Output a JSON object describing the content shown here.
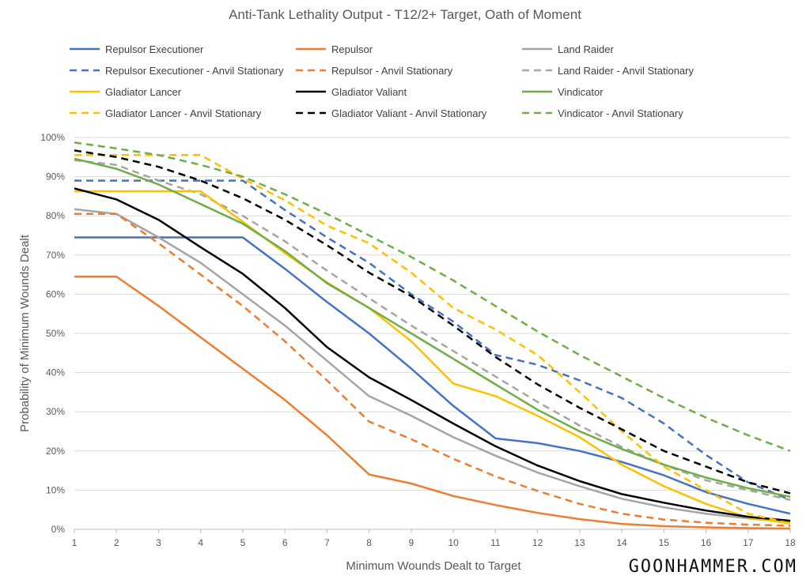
{
  "chart_data": {
    "type": "line",
    "title": "Anti-Tank Lethality Output - T12/2+ Target, Oath of Moment",
    "xlabel": "Minimum Wounds Dealt to Target",
    "ylabel": "Probability of Minimum Wounds Dealt",
    "x": [
      1,
      2,
      3,
      4,
      5,
      6,
      7,
      8,
      9,
      10,
      11,
      12,
      13,
      14,
      15,
      16,
      17,
      18
    ],
    "ylim": [
      0,
      100
    ],
    "yticks": [
      0,
      10,
      20,
      30,
      40,
      50,
      60,
      70,
      80,
      90,
      100
    ],
    "ytick_format": "%",
    "grid": "horizontal",
    "legend_placement": "top",
    "series": [
      {
        "name": "Repulsor Executioner",
        "color": "#4472C4",
        "dash": false,
        "values": [
          74.5,
          74.5,
          74.5,
          74.5,
          74.5,
          66.5,
          58,
          50,
          41,
          31.5,
          23.2,
          22,
          20,
          17.2,
          13.8,
          9.5,
          6.5,
          4
        ]
      },
      {
        "name": "Repulsor",
        "color": "#ED7D31",
        "dash": false,
        "values": [
          64.5,
          64.5,
          57,
          49,
          41,
          33,
          24,
          14,
          11.7,
          8.5,
          6.2,
          4.2,
          2.6,
          1.4,
          0.8,
          0.5,
          0.3,
          0.2
        ]
      },
      {
        "name": "Land Raider",
        "color": "#A5A5A5",
        "dash": false,
        "values": [
          81.7,
          80.5,
          74.5,
          68,
          60,
          52,
          43,
          34,
          29,
          23.5,
          18.8,
          14.5,
          11,
          7.8,
          5.6,
          4,
          2.8,
          1.8
        ]
      },
      {
        "name": "Repulsor Executioner - Anvil Stationary",
        "color": "#4472C4",
        "dash": true,
        "values": [
          89,
          89,
          89,
          89,
          89,
          81.5,
          74.5,
          68,
          60,
          53,
          44.5,
          42,
          38,
          33.5,
          27,
          19,
          12,
          7.5
        ]
      },
      {
        "name": "Repulsor - Anvil Stationary",
        "color": "#ED7D31",
        "dash": true,
        "values": [
          80.5,
          80.5,
          73,
          65,
          57,
          48,
          38,
          27.5,
          23,
          18,
          13.5,
          9.8,
          6.5,
          4,
          2.5,
          1.7,
          1.2,
          0.9
        ]
      },
      {
        "name": "Land Raider - Anvil Stationary",
        "color": "#A5A5A5",
        "dash": true,
        "values": [
          94.2,
          93,
          89,
          85.5,
          80,
          73.5,
          66,
          59,
          52,
          45.5,
          39,
          32.5,
          26.5,
          21,
          16.5,
          12.5,
          10,
          7.5
        ]
      },
      {
        "name": "Gladiator Lancer",
        "color": "#FFC000",
        "dash": false,
        "values": [
          86.3,
          86.3,
          86.3,
          86.3,
          78.5,
          70.5,
          63,
          56.5,
          48,
          37.2,
          34,
          29,
          23.5,
          16.5,
          11,
          6.5,
          3,
          1.5
        ]
      },
      {
        "name": "Gladiator Valiant",
        "color": "#000000",
        "dash": false,
        "values": [
          87,
          84.2,
          79,
          72,
          65.2,
          56.5,
          46.5,
          38.8,
          33,
          27,
          21.2,
          16.3,
          12.3,
          9,
          6.8,
          4.8,
          3.2,
          2.2
        ]
      },
      {
        "name": "Vindicator",
        "color": "#70AD47",
        "dash": false,
        "values": [
          94.6,
          92,
          88,
          83,
          78,
          71,
          62.8,
          56.5,
          50,
          43.5,
          37,
          30.5,
          25,
          20.5,
          16.5,
          13.2,
          10.5,
          8.3
        ]
      },
      {
        "name": "Gladiator Lancer - Anvil Stationary",
        "color": "#FFC000",
        "dash": true,
        "values": [
          95.5,
          95.5,
          95.5,
          95.5,
          89.5,
          84,
          77.5,
          73,
          65.5,
          56.5,
          51,
          44.5,
          35,
          25,
          16,
          10,
          4,
          1.5
        ]
      },
      {
        "name": "Gladiator Valiant - Anvil Stationary",
        "color": "#000000",
        "dash": true,
        "values": [
          96.7,
          95,
          92.5,
          89,
          84.5,
          79,
          72.5,
          65.5,
          59.5,
          52,
          44,
          37,
          31,
          25.5,
          20,
          16,
          12,
          9.2
        ]
      },
      {
        "name": "Vindicator - Anvil Stationary",
        "color": "#70AD47",
        "dash": true,
        "values": [
          98.7,
          97.2,
          95.5,
          93,
          90,
          85.5,
          80.5,
          75,
          69.5,
          63.5,
          57,
          50.5,
          44.5,
          39,
          33.5,
          28.5,
          24,
          20
        ]
      }
    ]
  },
  "watermark": "GOONHAMMER.COM"
}
